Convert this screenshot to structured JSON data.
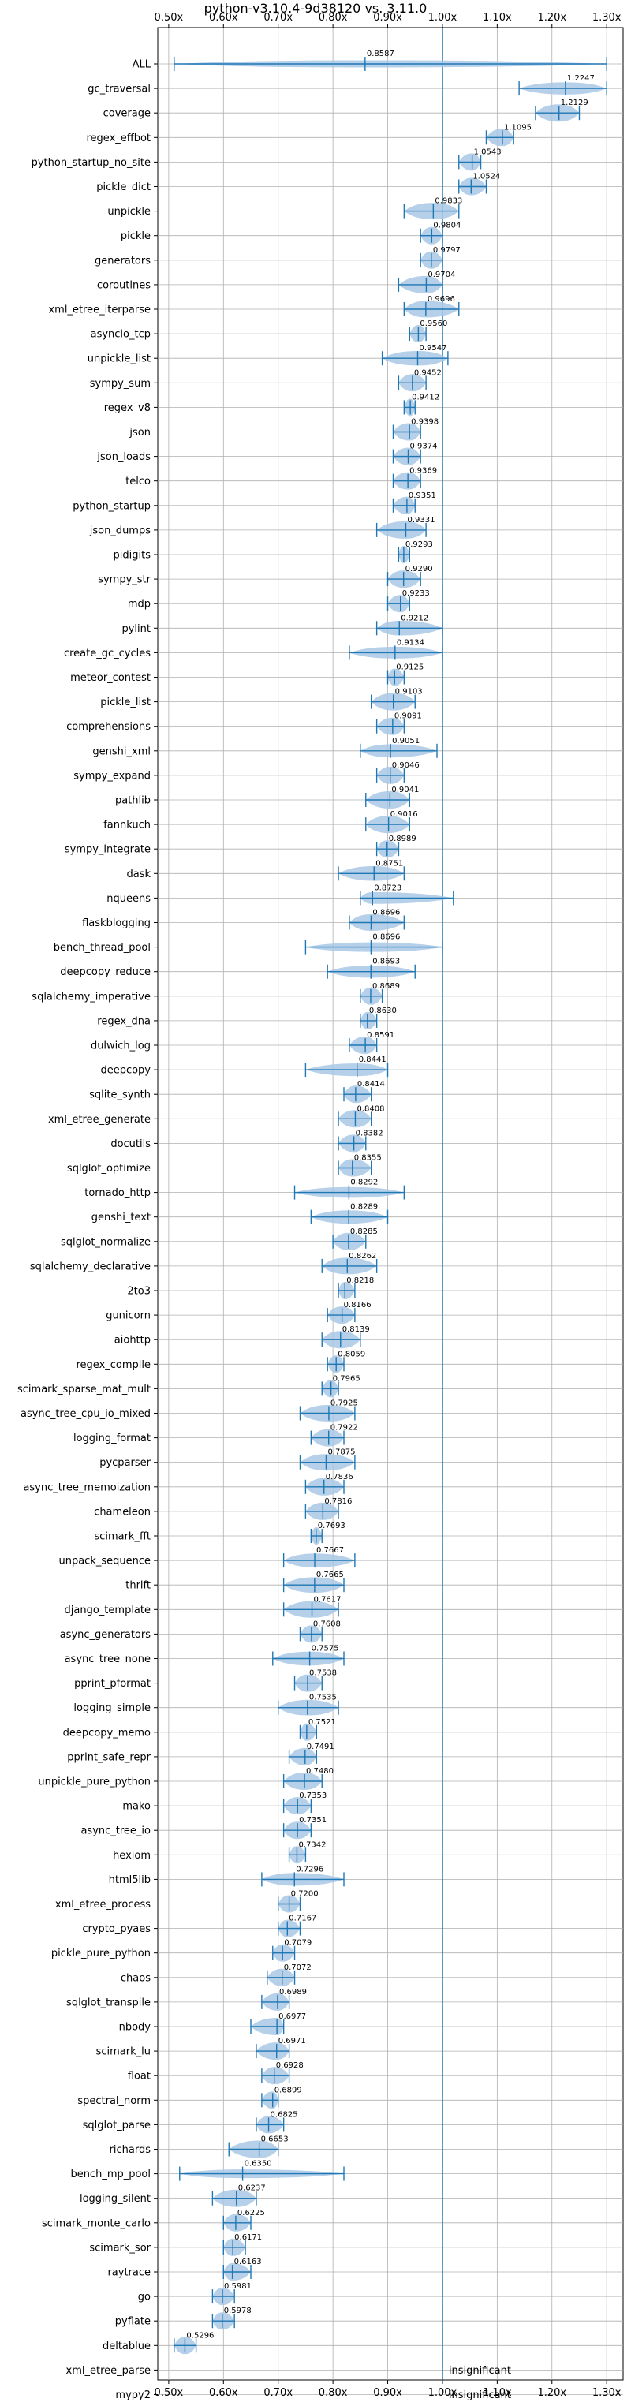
{
  "chart_data": {
    "type": "violin",
    "title": "python-v3.10.4-9d38120 vs. 3.11.0",
    "xlim": [
      0.48,
      1.33
    ],
    "xticks": [
      0.5,
      0.6,
      0.7,
      0.8,
      0.9,
      1.0,
      1.1,
      1.2,
      1.3
    ],
    "xtick_labels": [
      "0.50x",
      "0.60x",
      "0.70x",
      "0.80x",
      "0.90x",
      "1.00x",
      "1.10x",
      "1.20x",
      "1.30x"
    ],
    "reference_line": 1.0,
    "grid": true,
    "colors": {
      "violin": "#a9c8e6",
      "line": "#1f77b4",
      "grid": "#b0b0b0"
    },
    "categories": [
      "ALL",
      "gc_traversal",
      "coverage",
      "regex_effbot",
      "python_startup_no_site",
      "pickle_dict",
      "unpickle",
      "pickle",
      "generators",
      "coroutines",
      "xml_etree_iterparse",
      "asyncio_tcp",
      "unpickle_list",
      "sympy_sum",
      "regex_v8",
      "json",
      "json_loads",
      "telco",
      "python_startup",
      "json_dumps",
      "pidigits",
      "sympy_str",
      "mdp",
      "pylint",
      "create_gc_cycles",
      "meteor_contest",
      "pickle_list",
      "comprehensions",
      "genshi_xml",
      "sympy_expand",
      "pathlib",
      "fannkuch",
      "sympy_integrate",
      "dask",
      "nqueens",
      "flaskblogging",
      "bench_thread_pool",
      "deepcopy_reduce",
      "sqlalchemy_imperative",
      "regex_dna",
      "dulwich_log",
      "deepcopy",
      "sqlite_synth",
      "xml_etree_generate",
      "docutils",
      "sqlglot_optimize",
      "tornado_http",
      "genshi_text",
      "sqlglot_normalize",
      "sqlalchemy_declarative",
      "2to3",
      "gunicorn",
      "aiohttp",
      "regex_compile",
      "scimark_sparse_mat_mult",
      "async_tree_cpu_io_mixed",
      "logging_format",
      "pycparser",
      "async_tree_memoization",
      "chameleon",
      "scimark_fft",
      "unpack_sequence",
      "thrift",
      "django_template",
      "async_generators",
      "async_tree_none",
      "pprint_pformat",
      "logging_simple",
      "deepcopy_memo",
      "pprint_safe_repr",
      "unpickle_pure_python",
      "mako",
      "async_tree_io",
      "hexiom",
      "html5lib",
      "xml_etree_process",
      "crypto_pyaes",
      "pickle_pure_python",
      "chaos",
      "sqlglot_transpile",
      "nbody",
      "scimark_lu",
      "float",
      "spectral_norm",
      "sqlglot_parse",
      "richards",
      "bench_mp_pool",
      "logging_silent",
      "scimark_monte_carlo",
      "scimark_sor",
      "raytrace",
      "go",
      "pyflate",
      "deltablue",
      "xml_etree_parse",
      "mypy2"
    ],
    "values": [
      0.8587,
      1.2247,
      1.2129,
      1.1095,
      1.0543,
      1.0524,
      0.9833,
      0.9804,
      0.9797,
      0.9704,
      0.9696,
      0.956,
      0.9547,
      0.9452,
      0.9412,
      0.9398,
      0.9374,
      0.9369,
      0.9351,
      0.9331,
      0.9293,
      0.929,
      0.9233,
      0.9212,
      0.9134,
      0.9125,
      0.9103,
      0.9091,
      0.9051,
      0.9046,
      0.9041,
      0.9016,
      0.8989,
      0.8751,
      0.8723,
      0.8696,
      0.8696,
      0.8693,
      0.8689,
      0.863,
      0.8591,
      0.8441,
      0.8414,
      0.8408,
      0.8382,
      0.8355,
      0.8292,
      0.8289,
      0.8285,
      0.8262,
      0.8218,
      0.8166,
      0.8139,
      0.8059,
      0.7965,
      0.7925,
      0.7922,
      0.7875,
      0.7836,
      0.7816,
      0.7693,
      0.7667,
      0.7665,
      0.7617,
      0.7608,
      0.7575,
      0.7538,
      0.7535,
      0.7521,
      0.7491,
      0.748,
      0.7353,
      0.7351,
      0.7342,
      0.7296,
      0.72,
      0.7167,
      0.7079,
      0.7072,
      0.6989,
      0.6977,
      0.6971,
      0.6928,
      0.6899,
      0.6825,
      0.6653,
      0.635,
      0.6237,
      0.6225,
      0.6171,
      0.6163,
      0.5981,
      0.5978,
      0.5296,
      null,
      null
    ],
    "value_labels": [
      "0.8587",
      "1.2247",
      "1.2129",
      "1.1095",
      "1.0543",
      "1.0524",
      "0.9833",
      "0.9804",
      "0.9797",
      "0.9704",
      "0.9696",
      "0.9560",
      "0.9547",
      "0.9452",
      "0.9412",
      "0.9398",
      "0.9374",
      "0.9369",
      "0.9351",
      "0.9331",
      "0.9293",
      "0.9290",
      "0.9233",
      "0.9212",
      "0.9134",
      "0.9125",
      "0.9103",
      "0.9091",
      "0.9051",
      "0.9046",
      "0.9041",
      "0.9016",
      "0.8989",
      "0.8751",
      "0.8723",
      "0.8696",
      "0.8696",
      "0.8693",
      "0.8689",
      "0.8630",
      "0.8591",
      "0.8441",
      "0.8414",
      "0.8408",
      "0.8382",
      "0.8355",
      "0.8292",
      "0.8289",
      "0.8285",
      "0.8262",
      "0.8218",
      "0.8166",
      "0.8139",
      "0.8059",
      "0.7965",
      "0.7925",
      "0.7922",
      "0.7875",
      "0.7836",
      "0.7816",
      "0.7693",
      "0.7667",
      "0.7665",
      "0.7617",
      "0.7608",
      "0.7575",
      "0.7538",
      "0.7535",
      "0.7521",
      "0.7491",
      "0.7480",
      "0.7353",
      "0.7351",
      "0.7342",
      "0.7296",
      "0.7200",
      "0.7167",
      "0.7079",
      "0.7072",
      "0.6989",
      "0.6977",
      "0.6971",
      "0.6928",
      "0.6899",
      "0.6825",
      "0.6653",
      "0.6350",
      "0.6237",
      "0.6225",
      "0.6171",
      "0.6163",
      "0.5981",
      "0.5978",
      "0.5296",
      "",
      ""
    ],
    "ranges": [
      [
        0.51,
        1.3
      ],
      [
        1.14,
        1.3
      ],
      [
        1.17,
        1.25
      ],
      [
        1.08,
        1.13
      ],
      [
        1.03,
        1.07
      ],
      [
        1.03,
        1.08
      ],
      [
        0.93,
        1.03
      ],
      [
        0.96,
        1.0
      ],
      [
        0.96,
        1.0
      ],
      [
        0.92,
        1.0
      ],
      [
        0.93,
        1.03
      ],
      [
        0.94,
        0.97
      ],
      [
        0.89,
        1.01
      ],
      [
        0.92,
        0.97
      ],
      [
        0.93,
        0.95
      ],
      [
        0.91,
        0.96
      ],
      [
        0.91,
        0.96
      ],
      [
        0.91,
        0.96
      ],
      [
        0.91,
        0.95
      ],
      [
        0.88,
        0.97
      ],
      [
        0.92,
        0.94
      ],
      [
        0.9,
        0.96
      ],
      [
        0.9,
        0.94
      ],
      [
        0.88,
        1.0
      ],
      [
        0.83,
        1.0
      ],
      [
        0.9,
        0.93
      ],
      [
        0.87,
        0.95
      ],
      [
        0.88,
        0.93
      ],
      [
        0.85,
        0.99
      ],
      [
        0.88,
        0.93
      ],
      [
        0.86,
        0.94
      ],
      [
        0.86,
        0.94
      ],
      [
        0.88,
        0.92
      ],
      [
        0.81,
        0.93
      ],
      [
        0.85,
        1.02
      ],
      [
        0.83,
        0.93
      ],
      [
        0.75,
        1.0
      ],
      [
        0.79,
        0.95
      ],
      [
        0.85,
        0.89
      ],
      [
        0.85,
        0.88
      ],
      [
        0.83,
        0.88
      ],
      [
        0.75,
        0.9
      ],
      [
        0.82,
        0.87
      ],
      [
        0.81,
        0.87
      ],
      [
        0.81,
        0.86
      ],
      [
        0.81,
        0.87
      ],
      [
        0.73,
        0.93
      ],
      [
        0.76,
        0.9
      ],
      [
        0.8,
        0.86
      ],
      [
        0.78,
        0.88
      ],
      [
        0.81,
        0.84
      ],
      [
        0.79,
        0.84
      ],
      [
        0.78,
        0.85
      ],
      [
        0.79,
        0.82
      ],
      [
        0.78,
        0.81
      ],
      [
        0.74,
        0.84
      ],
      [
        0.76,
        0.82
      ],
      [
        0.74,
        0.84
      ],
      [
        0.75,
        0.82
      ],
      [
        0.75,
        0.81
      ],
      [
        0.76,
        0.78
      ],
      [
        0.71,
        0.84
      ],
      [
        0.71,
        0.82
      ],
      [
        0.71,
        0.81
      ],
      [
        0.74,
        0.78
      ],
      [
        0.69,
        0.82
      ],
      [
        0.73,
        0.78
      ],
      [
        0.7,
        0.81
      ],
      [
        0.74,
        0.77
      ],
      [
        0.72,
        0.77
      ],
      [
        0.71,
        0.78
      ],
      [
        0.71,
        0.76
      ],
      [
        0.71,
        0.76
      ],
      [
        0.72,
        0.75
      ],
      [
        0.67,
        0.82
      ],
      [
        0.7,
        0.74
      ],
      [
        0.7,
        0.74
      ],
      [
        0.69,
        0.73
      ],
      [
        0.68,
        0.73
      ],
      [
        0.67,
        0.72
      ],
      [
        0.65,
        0.71
      ],
      [
        0.66,
        0.72
      ],
      [
        0.67,
        0.72
      ],
      [
        0.67,
        0.7
      ],
      [
        0.66,
        0.71
      ],
      [
        0.61,
        0.7
      ],
      [
        0.52,
        0.82
      ],
      [
        0.58,
        0.66
      ],
      [
        0.6,
        0.65
      ],
      [
        0.6,
        0.64
      ],
      [
        0.6,
        0.65
      ],
      [
        0.58,
        0.62
      ],
      [
        0.58,
        0.62
      ],
      [
        0.51,
        0.55
      ],
      [
        null,
        null
      ],
      [
        null,
        null
      ]
    ],
    "annotations": [
      {
        "category": "xml_etree_parse",
        "text": "insignificant"
      },
      {
        "category": "mypy2",
        "text": "insignificant"
      }
    ]
  }
}
